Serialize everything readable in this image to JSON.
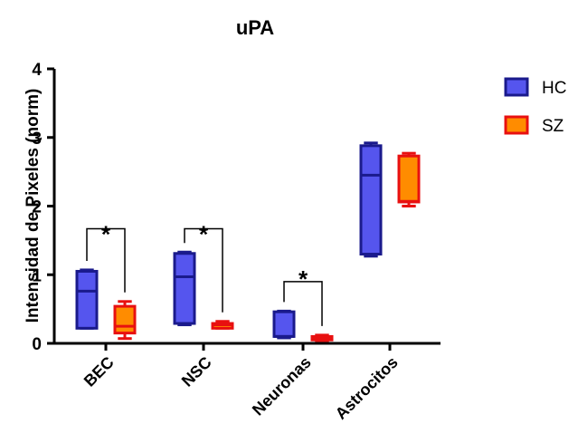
{
  "chart_data": {
    "type": "box",
    "title": "uPA",
    "xlabel": "",
    "ylabel": "Intensidad de Pixeles (norm)",
    "ylim": [
      0,
      4
    ],
    "yticks": [
      0,
      1,
      2,
      3,
      4
    ],
    "categories": [
      "BEC",
      "NSC",
      "Neuronas",
      "Astrocitos"
    ],
    "legend_position": "top-right",
    "grid": false,
    "series": [
      {
        "name": "HC",
        "color": "#5555ee",
        "edge_color": "#1a1a8c",
        "boxes": [
          {
            "min": 0.22,
            "q1": 0.22,
            "median": 0.76,
            "q3": 1.05,
            "max": 1.07
          },
          {
            "min": 0.27,
            "q1": 0.29,
            "median": 0.97,
            "q3": 1.31,
            "max": 1.33
          },
          {
            "min": 0.08,
            "q1": 0.1,
            "median": 0.1,
            "q3": 0.46,
            "max": 0.47
          },
          {
            "min": 1.27,
            "q1": 1.3,
            "median": 2.45,
            "q3": 2.88,
            "max": 2.92
          }
        ]
      },
      {
        "name": "SZ",
        "color": "#ff8c00",
        "edge_color": "#e81010",
        "boxes": [
          {
            "min": 0.07,
            "q1": 0.15,
            "median": 0.25,
            "q3": 0.54,
            "max": 0.61
          },
          {
            "min": 0.22,
            "q1": 0.22,
            "median": 0.27,
            "q3": 0.29,
            "max": 0.32
          },
          {
            "min": 0.04,
            "q1": 0.05,
            "median": 0.07,
            "q3": 0.1,
            "max": 0.12
          },
          {
            "min": 2.0,
            "q1": 2.06,
            "median": 2.07,
            "q3": 2.73,
            "max": 2.77
          }
        ]
      }
    ],
    "annotations": [
      {
        "text": "*",
        "category": "BEC",
        "y": 1.68,
        "bracket_y": 1.67
      },
      {
        "text": "*",
        "category": "NSC",
        "y": 1.68,
        "bracket_y": 1.67
      },
      {
        "text": "*",
        "category": "Neuronas",
        "y": 1.03,
        "bracket_y": 0.9
      }
    ]
  }
}
